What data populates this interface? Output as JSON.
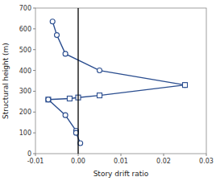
{
  "chart_data": {
    "type": "line",
    "xlabel": "Story drift ratio",
    "ylabel": "Structural height (m)",
    "xlim": [
      -0.01,
      0.03
    ],
    "ylim": [
      0,
      700
    ],
    "xticks": [
      -0.01,
      {
        "value": 0.0,
        "label": "0.00"
      },
      0.01,
      0.02,
      0.03
    ],
    "yticks": [
      0,
      100,
      200,
      300,
      400,
      500,
      600,
      700
    ],
    "color": "#2a4d8f",
    "vline_x": 0.0,
    "series": [
      {
        "x": [
          -0.006,
          -0.005,
          -0.003,
          0.005,
          0.025
        ],
        "values": [
          635,
          570,
          480,
          400,
          330
        ],
        "marker": "circle"
      },
      {
        "x": [
          -0.007,
          -0.002,
          0.0,
          0.005,
          0.025
        ],
        "values": [
          260,
          265,
          270,
          280,
          330
        ],
        "marker": "square"
      },
      {
        "x": [
          -0.007,
          -0.003,
          -0.0005,
          -0.0005,
          0.0005
        ],
        "values": [
          260,
          185,
          110,
          100,
          50
        ],
        "marker": "circle"
      }
    ]
  }
}
